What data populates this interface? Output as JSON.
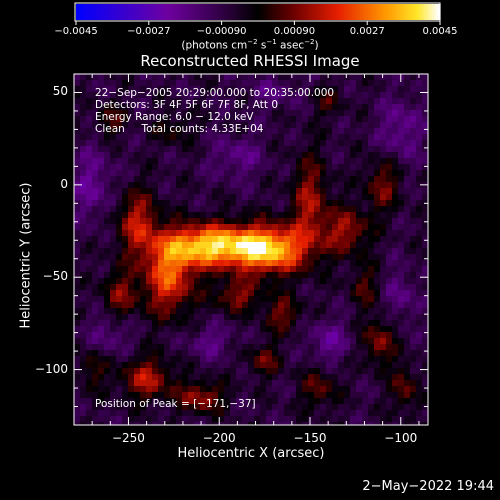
{
  "chart_data": {
    "type": "heatmap",
    "title": "Reconstructed RHESSI Image",
    "xlabel": "Heliocentric X (arcsec)",
    "ylabel": "Heliocentric Y (arcsec)",
    "xlim": [
      -280,
      -85
    ],
    "ylim": [
      -130,
      60
    ],
    "x_ticks": [
      -250,
      -200,
      -150,
      -100
    ],
    "x_tick_labels": [
      "−250",
      "−200",
      "−150",
      "−100"
    ],
    "y_ticks": [
      50,
      0,
      -50,
      -100
    ],
    "y_tick_labels": [
      "50",
      "0",
      "−50",
      "−100"
    ],
    "colorbar": {
      "min": -0.0045,
      "max": 0.0045,
      "ticks": [
        -0.0045,
        -0.0027,
        -0.0009,
        0.0009,
        0.0027,
        0.0045
      ],
      "tick_labels": [
        "−0.0045",
        "−0.0027",
        "−0.00090",
        "0.00090",
        "0.0027",
        "0.0045"
      ],
      "units_prefix": "(photons cm",
      "units_exp1": "−2",
      "units_mid1": " s",
      "units_exp2": "−1",
      "units_mid2": " asec",
      "units_exp3": "−2",
      "units_suffix": ")"
    },
    "peak_position": [
      -171,
      -37
    ],
    "sources": [
      {
        "x": -205,
        "y": -33,
        "peak": 0.0045,
        "sx": 18,
        "sy": 8
      },
      {
        "x": -172,
        "y": -35,
        "peak": 0.0042,
        "sx": 14,
        "sy": 9
      },
      {
        "x": -228,
        "y": -50,
        "peak": 0.003,
        "sx": 10,
        "sy": 14
      },
      {
        "x": -245,
        "y": -20,
        "peak": 0.0022,
        "sx": 8,
        "sy": 12
      },
      {
        "x": -150,
        "y": -10,
        "peak": 0.002,
        "sx": 7,
        "sy": 18
      },
      {
        "x": -130,
        "y": -25,
        "peak": 0.002,
        "sx": 9,
        "sy": 9
      },
      {
        "x": -110,
        "y": 0,
        "peak": 0.0016,
        "sx": 7,
        "sy": 10
      },
      {
        "x": -190,
        "y": -60,
        "peak": 0.0018,
        "sx": 9,
        "sy": 6
      },
      {
        "x": -165,
        "y": -70,
        "peak": 0.0016,
        "sx": 7,
        "sy": 7
      },
      {
        "x": -255,
        "y": -60,
        "peak": 0.0016,
        "sx": 7,
        "sy": 10
      },
      {
        "x": -240,
        "y": -105,
        "peak": 0.0022,
        "sx": 10,
        "sy": 8
      },
      {
        "x": -210,
        "y": -115,
        "peak": 0.002,
        "sx": 9,
        "sy": 6
      },
      {
        "x": -175,
        "y": -95,
        "peak": 0.0014,
        "sx": 7,
        "sy": 6
      },
      {
        "x": -145,
        "y": -110,
        "peak": 0.0014,
        "sx": 7,
        "sy": 8
      },
      {
        "x": -112,
        "y": -85,
        "peak": 0.0018,
        "sx": 6,
        "sy": 9
      },
      {
        "x": -98,
        "y": -110,
        "peak": 0.0015,
        "sx": 5,
        "sy": 9
      },
      {
        "x": -260,
        "y": 35,
        "peak": 0.0013,
        "sx": 6,
        "sy": 6
      },
      {
        "x": -225,
        "y": 30,
        "peak": 0.001,
        "sx": 7,
        "sy": 6
      },
      {
        "x": -140,
        "y": 45,
        "peak": 0.001,
        "sx": 6,
        "sy": 6
      },
      {
        "x": -270,
        "y": -100,
        "peak": 0.0012,
        "sx": 5,
        "sy": 8
      },
      {
        "x": -120,
        "y": -55,
        "peak": 0.0012,
        "sx": 6,
        "sy": 8
      },
      {
        "x": -270,
        "y": 0,
        "peak": -0.0012,
        "sx": 8,
        "sy": 14
      },
      {
        "x": -100,
        "y": 30,
        "peak": -0.0012,
        "sx": 8,
        "sy": 12
      },
      {
        "x": -190,
        "y": 15,
        "peak": -0.001,
        "sx": 10,
        "sy": 8
      },
      {
        "x": -260,
        "y": -80,
        "peak": -0.001,
        "sx": 8,
        "sy": 8
      },
      {
        "x": -140,
        "y": -85,
        "peak": -0.0012,
        "sx": 8,
        "sy": 8
      },
      {
        "x": -205,
        "y": -85,
        "peak": -0.001,
        "sx": 9,
        "sy": 6
      },
      {
        "x": -100,
        "y": -60,
        "peak": -0.001,
        "sx": 6,
        "sy": 10
      },
      {
        "x": -170,
        "y": 50,
        "peak": -0.0008,
        "sx": 10,
        "sy": 6
      }
    ]
  },
  "annotations": {
    "time": "22−Sep−2005 20:29:00.000 to 20:35:00.000",
    "detectors": "Detectors: 3F 4F 5F 6F 7F 8F, Att 0",
    "energy": "Energy Range: 6.0 − 12.0 keV",
    "clean": "Clean     Total counts: 4.33E+04",
    "peak": "Position of Peak = [−171,−37]"
  },
  "timestamp": "2−May−2022 19:44",
  "colors": {
    "background": "#000000",
    "text": "#ffffff",
    "cmap_low": "#0000ff",
    "cmap_mid": "#000000",
    "cmap_high": "#ffffff"
  }
}
